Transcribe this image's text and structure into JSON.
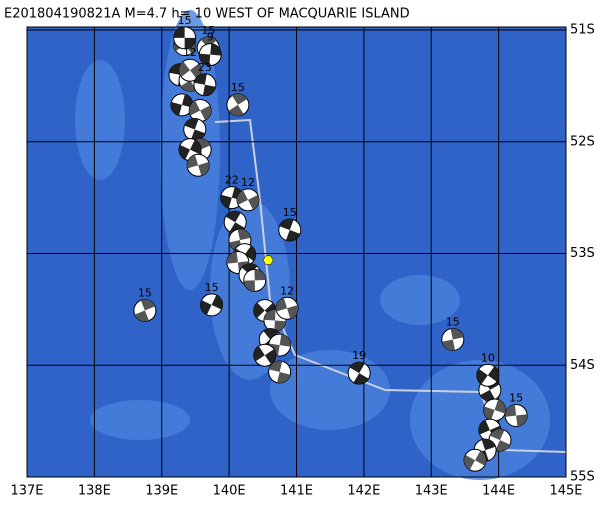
{
  "map": {
    "title": "E201804190821A M=4.7 h= 10 WEST OF MACQUARIE ISLAND",
    "xlim": [
      137,
      145
    ],
    "ylim": [
      -55,
      -51
    ],
    "xticks": [
      {
        "value": 137,
        "label": "137E"
      },
      {
        "value": 138,
        "label": "138E"
      },
      {
        "value": 139,
        "label": "139E"
      },
      {
        "value": 140,
        "label": "140E"
      },
      {
        "value": 141,
        "label": "141E"
      },
      {
        "value": 142,
        "label": "142E"
      },
      {
        "value": 143,
        "label": "143E"
      },
      {
        "value": 144,
        "label": "144E"
      },
      {
        "value": 145,
        "label": "145E"
      }
    ],
    "yticks": [
      {
        "value": -51,
        "label": "51S"
      },
      {
        "value": -52,
        "label": "52S"
      },
      {
        "value": -53,
        "label": "53S"
      },
      {
        "value": -54,
        "label": "54S"
      },
      {
        "value": -55,
        "label": "55S"
      }
    ],
    "main_event": {
      "lon": 140.58,
      "lat": -53.06,
      "color": "#ffff00"
    },
    "events": [
      {
        "lon": 139.34,
        "lat": -51.07,
        "depth": 15
      },
      {
        "lon": 139.69,
        "lat": -51.16,
        "depth": 15
      },
      {
        "lon": 139.72,
        "lat": -51.22,
        "depth": 9
      },
      {
        "lon": 139.42,
        "lat": -51.36,
        "depth": 12
      },
      {
        "lon": 139.64,
        "lat": -51.49,
        "depth": 23
      },
      {
        "lon": 140.13,
        "lat": -51.67,
        "depth": 15
      },
      {
        "lon": 140.04,
        "lat": -52.5,
        "depth": 22
      },
      {
        "lon": 140.28,
        "lat": -52.52,
        "depth": 12
      },
      {
        "lon": 140.9,
        "lat": -52.79,
        "depth": 15
      },
      {
        "lon": 138.75,
        "lat": -53.51,
        "depth": 15
      },
      {
        "lon": 139.74,
        "lat": -53.46,
        "depth": 15
      },
      {
        "lon": 140.86,
        "lat": -53.49,
        "depth": 12
      },
      {
        "lon": 141.93,
        "lat": -54.07,
        "depth": 19
      },
      {
        "lon": 143.32,
        "lat": -53.77,
        "depth": 15
      },
      {
        "lon": 143.84,
        "lat": -54.09,
        "depth": 10
      },
      {
        "lon": 144.26,
        "lat": -54.45,
        "depth": 15
      }
    ],
    "unlabeled_events": [
      {
        "lon": 139.34,
        "lat": -51.13
      },
      {
        "lon": 139.27,
        "lat": -51.4
      },
      {
        "lon": 139.42,
        "lat": -51.45
      },
      {
        "lon": 139.3,
        "lat": -51.67
      },
      {
        "lon": 139.57,
        "lat": -51.72
      },
      {
        "lon": 139.49,
        "lat": -51.89
      },
      {
        "lon": 139.57,
        "lat": -52.07
      },
      {
        "lon": 139.42,
        "lat": -52.07
      },
      {
        "lon": 139.54,
        "lat": -52.21
      },
      {
        "lon": 140.09,
        "lat": -52.72
      },
      {
        "lon": 140.16,
        "lat": -52.88
      },
      {
        "lon": 140.23,
        "lat": -53.01
      },
      {
        "lon": 140.13,
        "lat": -53.08
      },
      {
        "lon": 140.31,
        "lat": -53.19
      },
      {
        "lon": 140.38,
        "lat": -53.24
      },
      {
        "lon": 140.53,
        "lat": -53.51
      },
      {
        "lon": 140.68,
        "lat": -53.6
      },
      {
        "lon": 140.61,
        "lat": -53.77
      },
      {
        "lon": 140.75,
        "lat": -53.82
      },
      {
        "lon": 140.53,
        "lat": -53.91
      },
      {
        "lon": 140.75,
        "lat": -54.06
      },
      {
        "lon": 143.87,
        "lat": -54.22
      },
      {
        "lon": 143.94,
        "lat": -54.4
      },
      {
        "lon": 143.87,
        "lat": -54.58
      },
      {
        "lon": 144.02,
        "lat": -54.67
      },
      {
        "lon": 143.8,
        "lat": -54.76
      },
      {
        "lon": 143.65,
        "lat": -54.85
      }
    ]
  }
}
